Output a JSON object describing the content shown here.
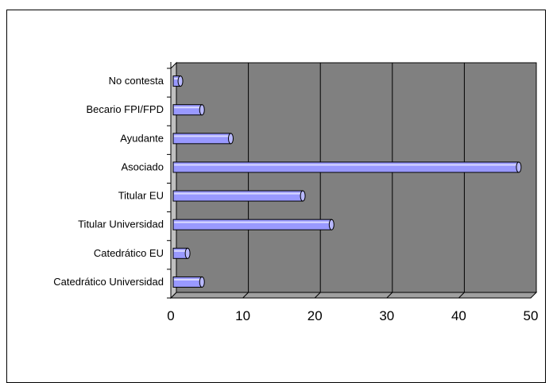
{
  "chart_data": {
    "type": "bar",
    "orientation": "horizontal",
    "title": "",
    "xlabel": "",
    "ylabel": "",
    "categories": [
      "Catedrático Universidad",
      "Catedrático EU",
      "Titular Universidad",
      "Titular EU",
      "Asociado",
      "Ayudante",
      "Becario FPI/FPD",
      "No contesta"
    ],
    "values": [
      4,
      2,
      22,
      18,
      48,
      8,
      4,
      1
    ],
    "xlim": [
      0,
      50
    ],
    "xticks": [
      "0",
      "10",
      "20",
      "30",
      "40",
      "50"
    ],
    "grid": "vertical",
    "legend": "none",
    "colors": {
      "bar": "#9999ff",
      "plot_bg": "#808080",
      "bar_edge": "#000000"
    }
  }
}
